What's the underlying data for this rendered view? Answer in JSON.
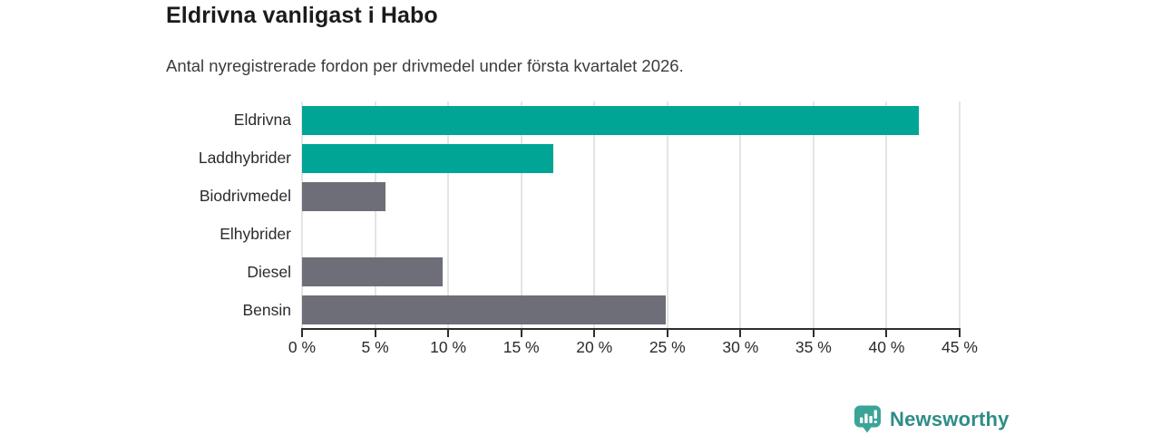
{
  "chart_data": {
    "type": "bar",
    "orientation": "horizontal",
    "title": "Eldrivna vanligast i Habo",
    "subtitle": "Antal nyregistrerade fordon per drivmedel under första kvartalet 2026.",
    "categories": [
      "Eldrivna",
      "Laddhybrider",
      "Biodrivmedel",
      "Elhybrider",
      "Diesel",
      "Bensin"
    ],
    "values": [
      42.2,
      17.2,
      5.7,
      0,
      9.6,
      24.9
    ],
    "unit": "%",
    "xlim": [
      0,
      45
    ],
    "x_tick_values": [
      0,
      5,
      10,
      15,
      20,
      25,
      30,
      35,
      40,
      45
    ],
    "x_tick_labels": [
      "0 %",
      "5 %",
      "10 %",
      "15 %",
      "20 %",
      "25 %",
      "30 %",
      "35 %",
      "40 %",
      "45 %"
    ],
    "grid": "vertical-only",
    "legend": "none",
    "colors": {
      "highlight": "#00a596",
      "default": "#6e6e78"
    },
    "bar_colors": [
      "#00a596",
      "#00a596",
      "#6e6e78",
      "#6e6e78",
      "#6e6e78",
      "#6e6e78"
    ]
  },
  "footer": {
    "brand": "Newsworthy",
    "brand_text_color": "#2f8d86",
    "brand_icon": "newsworthy-logo-icon",
    "brand_icon_color": "#3aa497"
  }
}
